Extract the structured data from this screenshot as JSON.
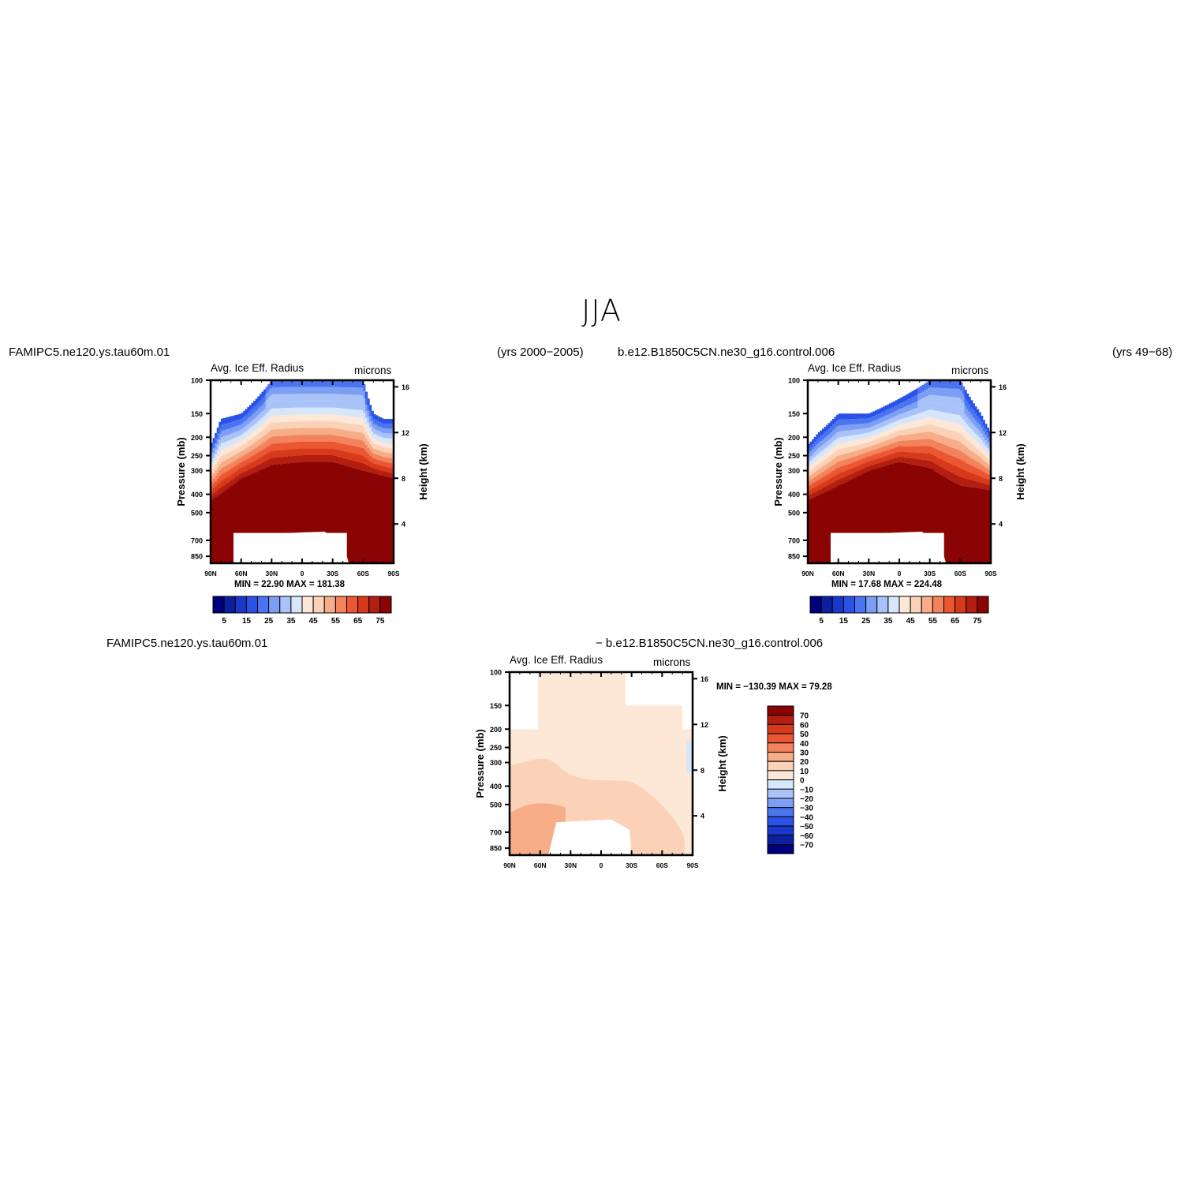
{
  "page_title": "JJA",
  "panels": [
    {
      "id": "left",
      "case_name": "FAMIPC5.ne120.ys.tau60m.01",
      "years": "(yrs 2000−2005)",
      "var_title": "Avg. Ice Eff. Radius",
      "units": "microns",
      "y_label": "Pressure (mb)",
      "y2_label": "Height (km)",
      "min_max": "MIN =   22.90   MAX = 181.38"
    },
    {
      "id": "right",
      "case_name": "b.e12.B1850C5CN.ne30_g16.control.006",
      "years": "(yrs 49−68)",
      "var_title": "Avg. Ice Eff. Radius",
      "units": "microns",
      "y_label": "Pressure (mb)",
      "y2_label": "Height (km)",
      "min_max": "MIN =   17.68   MAX = 224.48"
    },
    {
      "id": "diff",
      "case_name": "FAMIPC5.ne120.ys.tau60m.01",
      "subtitle": "− b.e12.B1850C5CN.ne30_g16.control.006",
      "var_title": "Avg. Ice Eff. Radius",
      "units": "microns",
      "y_label": "Pressure (mb)",
      "y2_label": "Height (km)",
      "min_max": "MIN = −130.39   MAX =  79.28"
    }
  ],
  "chart_data": [
    {
      "type": "heatmap",
      "title": "Avg. Ice Eff. Radius",
      "units": "microns",
      "x_ticks": [
        "90N",
        "60N",
        "30N",
        "0",
        "30S",
        "60S",
        "90S"
      ],
      "y_ticks": [
        "100",
        "150",
        "200",
        "250",
        "300",
        "400",
        "500",
        "700",
        "850"
      ],
      "y2_ticks": [
        "16",
        "12",
        "8",
        "4"
      ],
      "ylabel": "Pressure (mb)",
      "y2label": "Height (km)",
      "min": 22.9,
      "max": 181.38,
      "colorbar": {
        "orientation": "horizontal",
        "labels": [
          "5",
          "15",
          "25",
          "35",
          "45",
          "55",
          "65",
          "75"
        ],
        "levels": [
          5,
          10,
          15,
          20,
          25,
          30,
          35,
          40,
          45,
          50,
          55,
          60,
          65,
          70,
          75
        ],
        "colors": [
          "#00007f",
          "#0c1f9f",
          "#1b38cc",
          "#2a52e6",
          "#4a74f0",
          "#7c9ef5",
          "#a9c3f8",
          "#d6e6fb",
          "#fde7d7",
          "#fbd2b8",
          "#f7ad88",
          "#f2835d",
          "#ec5733",
          "#d73a1b",
          "#b31e10",
          "#8a0404"
        ]
      },
      "cross_section": {
        "cloud_top_mb_by_lat": [
          [
            -90,
            160
          ],
          [
            -80,
            160
          ],
          [
            -70,
            150
          ],
          [
            -60,
            100
          ],
          [
            -30,
            100
          ],
          [
            30,
            100
          ],
          [
            60,
            150
          ],
          [
            80,
            160
          ],
          [
            90,
            220
          ]
        ],
        "cold_cap_mb": 170,
        "warm_core_top_mb_by_lat": [
          [
            -90,
            330
          ],
          [
            -60,
            300
          ],
          [
            -30,
            270
          ],
          [
            0,
            270
          ],
          [
            30,
            280
          ],
          [
            60,
            330
          ],
          [
            90,
            430
          ]
        ],
        "surface_gap_mb": 640
      }
    },
    {
      "type": "heatmap",
      "title": "Avg. Ice Eff. Radius",
      "units": "microns",
      "x_ticks": [
        "90N",
        "60N",
        "30N",
        "0",
        "30S",
        "60S",
        "90S"
      ],
      "y_ticks": [
        "100",
        "150",
        "200",
        "250",
        "300",
        "400",
        "500",
        "700",
        "850"
      ],
      "y2_ticks": [
        "16",
        "12",
        "8",
        "4"
      ],
      "ylabel": "Pressure (mb)",
      "y2label": "Height (km)",
      "min": 17.68,
      "max": 224.48,
      "colorbar": {
        "orientation": "horizontal",
        "labels": [
          "5",
          "15",
          "25",
          "35",
          "45",
          "55",
          "65",
          "75"
        ],
        "levels": [
          5,
          10,
          15,
          20,
          25,
          30,
          35,
          40,
          45,
          50,
          55,
          60,
          65,
          70,
          75
        ],
        "colors": [
          "#00007f",
          "#0c1f9f",
          "#1b38cc",
          "#2a52e6",
          "#4a74f0",
          "#7c9ef5",
          "#a9c3f8",
          "#d6e6fb",
          "#fde7d7",
          "#fbd2b8",
          "#f7ad88",
          "#f2835d",
          "#ec5733",
          "#d73a1b",
          "#b31e10",
          "#8a0404"
        ]
      },
      "cross_section": {
        "cloud_top_mb_by_lat": [
          [
            -90,
            190
          ],
          [
            -80,
            150
          ],
          [
            -60,
            100
          ],
          [
            -30,
            100
          ],
          [
            30,
            150
          ],
          [
            60,
            150
          ],
          [
            80,
            190
          ],
          [
            90,
            220
          ]
        ],
        "cold_cap_mb": 170,
        "warm_core_top_mb_by_lat": [
          [
            -90,
            380
          ],
          [
            -60,
            360
          ],
          [
            -30,
            290
          ],
          [
            0,
            270
          ],
          [
            30,
            300
          ],
          [
            60,
            360
          ],
          [
            90,
            430
          ]
        ],
        "surface_gap_mb": 640
      }
    },
    {
      "type": "heatmap",
      "title": "Avg. Ice Eff. Radius",
      "units": "microns",
      "x_ticks": [
        "90N",
        "60N",
        "30N",
        "0",
        "30S",
        "60S",
        "90S"
      ],
      "y_ticks": [
        "100",
        "150",
        "200",
        "250",
        "300",
        "400",
        "500",
        "700",
        "850"
      ],
      "y2_ticks": [
        "16",
        "12",
        "8",
        "4"
      ],
      "ylabel": "Pressure (mb)",
      "y2label": "Height (km)",
      "min": -130.39,
      "max": 79.28,
      "colorbar": {
        "orientation": "vertical",
        "labels": [
          "70",
          "60",
          "50",
          "40",
          "30",
          "20",
          "10",
          "0",
          "−10",
          "−20",
          "−30",
          "−40",
          "−50",
          "−60",
          "−70"
        ],
        "colors": [
          "#8a0404",
          "#b31e10",
          "#d73a1b",
          "#ec5733",
          "#f2835d",
          "#f7ad88",
          "#fbd2b8",
          "#fde7d7",
          "#d6e6fb",
          "#a9c3f8",
          "#7c9ef5",
          "#4a74f0",
          "#2a52e6",
          "#1b38cc",
          "#0c1f9f",
          "#00007f"
        ]
      }
    }
  ]
}
